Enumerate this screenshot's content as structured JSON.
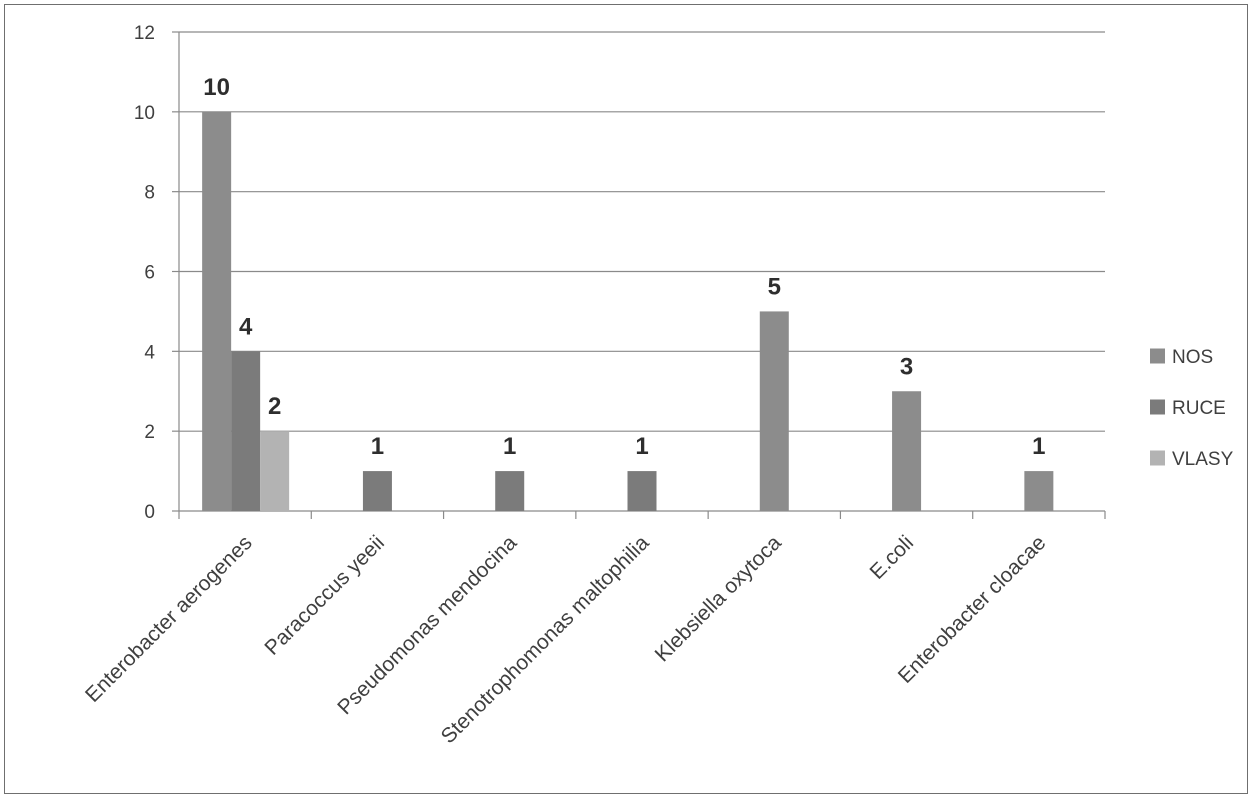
{
  "chart_data": {
    "type": "bar",
    "title": "",
    "xlabel": "",
    "ylabel": "",
    "ylim": [
      0,
      12
    ],
    "yticks": [
      0,
      2,
      4,
      6,
      8,
      10,
      12
    ],
    "grid": true,
    "legend_position": "right",
    "categories": [
      "Enterobacter aerogenes",
      "Paracoccus yeeii",
      "Pseudomonas mendocina",
      "Stenotrophomonas maltophilia",
      "Klebsiella oxytoca",
      "E.coli",
      "Enterobacter cloacae"
    ],
    "series": [
      {
        "name": "NOS",
        "color": "#8c8c8c",
        "values": [
          10,
          null,
          null,
          null,
          5,
          3,
          1
        ]
      },
      {
        "name": "RUCE",
        "color": "#7b7b7b",
        "values": [
          4,
          1,
          1,
          1,
          null,
          null,
          null
        ]
      },
      {
        "name": "VLASY",
        "color": "#b3b3b3",
        "values": [
          2,
          null,
          null,
          null,
          null,
          null,
          null
        ]
      }
    ]
  }
}
